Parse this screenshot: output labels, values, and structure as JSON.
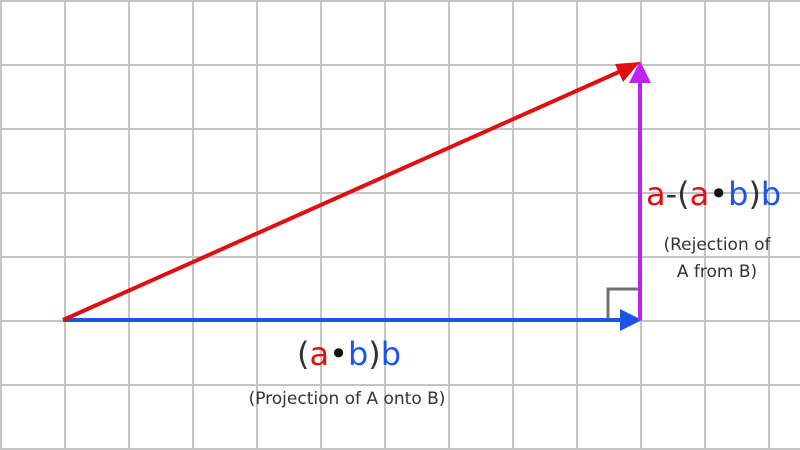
{
  "colors": {
    "background": "#ffffff",
    "grid": "#c4c4c4",
    "vector_a": "#e01010",
    "vector_b": "#1a55e8",
    "rejection": "#c020f0",
    "right_angle": "#707070",
    "text": "#333333",
    "dot": "#111111"
  },
  "projection": {
    "formula": {
      "open": "(",
      "a": "a",
      "dot": "•",
      "b1": "b",
      "close": ")",
      "b2": "b"
    },
    "caption": "(Projection of A onto B)"
  },
  "rejection": {
    "formula": {
      "a1": "a",
      "minus_open": "-(",
      "a2": "a",
      "dot": "•",
      "b1": "b",
      "close": ")",
      "b2": "b"
    },
    "caption_line1": "(Rejection of",
    "caption_line2": "A from B)"
  }
}
